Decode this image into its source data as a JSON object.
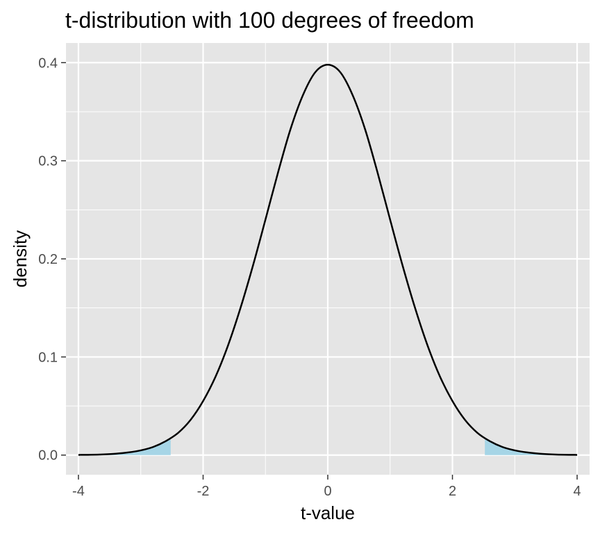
{
  "chart_data": {
    "type": "area",
    "title": "t-distribution with 100 degrees of freedom",
    "xlabel": "t-value",
    "ylabel": "density",
    "xlim": [
      -4.2,
      4.2
    ],
    "ylim": [
      -0.02,
      0.42
    ],
    "x_ticks": [
      -4,
      -2,
      0,
      2,
      4
    ],
    "x_tick_labels": [
      "-4",
      "-2",
      "0",
      "2",
      "4"
    ],
    "y_ticks": [
      0.0,
      0.1,
      0.2,
      0.3,
      0.4
    ],
    "y_tick_labels": [
      "0.0",
      "0.1",
      "0.2",
      "0.3",
      "0.4"
    ],
    "x_minor_ticks": [
      -3,
      -1,
      1,
      3
    ],
    "y_minor_ticks": [
      0.05,
      0.15,
      0.25,
      0.35
    ],
    "grid": true,
    "legend": "none",
    "series": [
      {
        "kind": "line",
        "x": [
          -4.0,
          -3.8,
          -3.6,
          -3.4,
          -3.2,
          -3.0,
          -2.8,
          -2.6,
          -2.4,
          -2.2,
          -2.0,
          -1.8,
          -1.6,
          -1.4,
          -1.2,
          -1.0,
          -0.8,
          -0.6,
          -0.4,
          -0.2,
          0.0,
          0.2,
          0.4,
          0.6,
          0.8,
          1.0,
          1.2,
          1.4,
          1.6,
          1.8,
          2.0,
          2.2,
          2.4,
          2.6,
          2.8,
          3.0,
          3.2,
          3.4,
          3.6,
          3.8,
          4.0
        ],
        "y": [
          0.0002,
          0.0003,
          0.0007,
          0.0014,
          0.0027,
          0.0048,
          0.0083,
          0.0142,
          0.0227,
          0.036,
          0.0551,
          0.08,
          0.1118,
          0.15,
          0.1932,
          0.24,
          0.2876,
          0.3318,
          0.3667,
          0.3903,
          0.3979,
          0.3903,
          0.3667,
          0.3318,
          0.2876,
          0.24,
          0.1932,
          0.15,
          0.1118,
          0.08,
          0.0551,
          0.036,
          0.0227,
          0.0142,
          0.0083,
          0.0048,
          0.0027,
          0.0014,
          0.0007,
          0.0003,
          0.0002
        ],
        "color": "#000000"
      },
      {
        "kind": "area",
        "x": [
          -4.0,
          -3.8,
          -3.6,
          -3.4,
          -3.2,
          -3.0,
          -2.8,
          -2.6,
          -2.52
        ],
        "y": [
          0.0002,
          0.0003,
          0.0007,
          0.0014,
          0.0027,
          0.0048,
          0.0083,
          0.0142,
          0.018
        ],
        "color": "#a6d5e6"
      },
      {
        "kind": "area",
        "x": [
          2.52,
          2.6,
          2.8,
          3.0,
          3.2,
          3.4,
          3.6,
          3.8,
          4.0
        ],
        "y": [
          0.018,
          0.0142,
          0.0083,
          0.0048,
          0.0027,
          0.0014,
          0.0007,
          0.0003,
          0.0002
        ],
        "color": "#a6d5e6"
      }
    ],
    "panel_background": "#e5e5e5",
    "grid_color": "#ffffff"
  }
}
